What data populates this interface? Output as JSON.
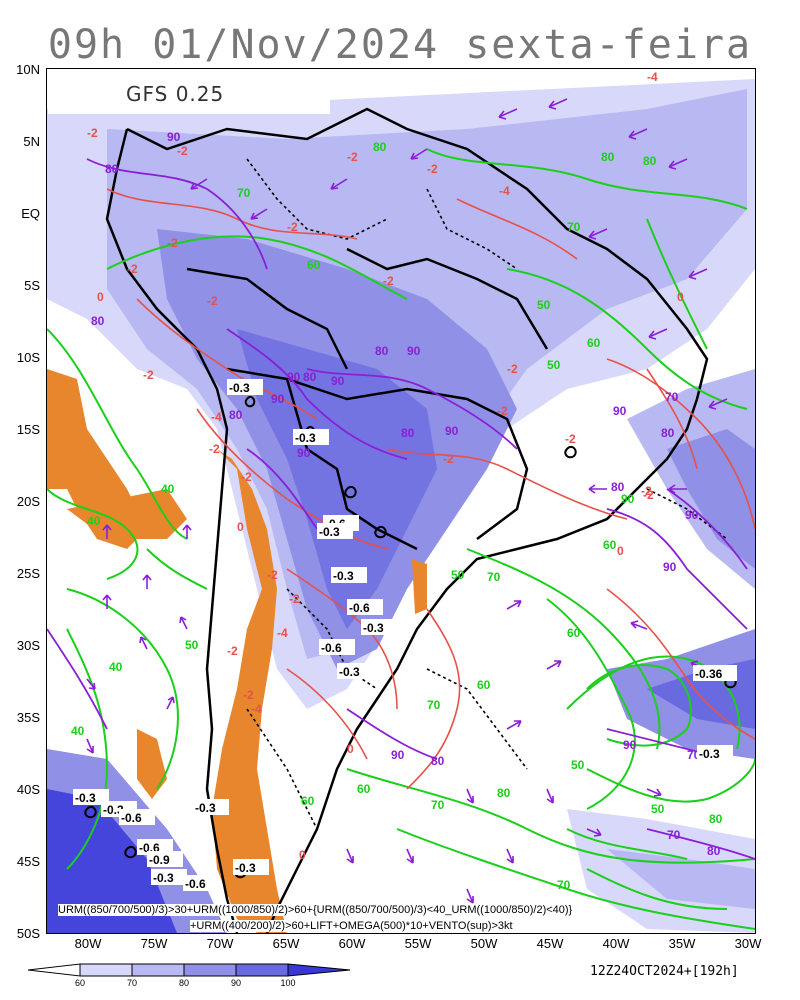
{
  "title": "09h 01/Nov/2024 sexta-feira",
  "model": "GFS 0.25",
  "lat_labels": [
    "10N",
    "5N",
    "EQ",
    "5S",
    "10S",
    "15S",
    "20S",
    "25S",
    "30S",
    "35S",
    "40S",
    "45S",
    "50S"
  ],
  "lon_labels": [
    "80W",
    "75W",
    "70W",
    "65W",
    "60W",
    "55W",
    "50W",
    "45W",
    "40W",
    "35W",
    "30W"
  ],
  "caption_line1": "URM((850/700/500)/3)>30+URM((1000/850)/2)>60+{URM((850/700/500)/3)<40_URM((1000/850)/2)<40)}",
  "caption_line2": "+URM((400/200)/2)>60+LIFT+OMEGA(500)*10+VENTO(sup)>3kt",
  "colorbar_ticks": [
    "60",
    "70",
    "80",
    "90",
    "100"
  ],
  "run_info": "12Z24OCT2024+[192h]",
  "colors": {
    "lift_fill": "#e8862e",
    "humidity_60": "#d8d8fa",
    "humidity_70": "#b8b8f2",
    "humidity_80": "#9090e6",
    "humidity_90": "#6a6ae0",
    "humidity_100": "#3838d8",
    "contour_green": "#1bcf1b",
    "contour_red": "#e8504a",
    "contour_purple": "#8a1fd6",
    "wind_arrow": "#8a1fd6"
  },
  "contour_labels": {
    "green": [
      "80",
      "70",
      "60",
      "50",
      "40",
      "40",
      "80",
      "70",
      "60",
      "50",
      "60",
      "70",
      "80",
      "90",
      "60",
      "50",
      "60",
      "70",
      "40",
      "50",
      "80",
      "60",
      "70",
      "50",
      "40",
      "50",
      "60",
      "70",
      "80"
    ],
    "red": [
      "-2",
      "-2",
      "-2",
      "-4",
      "-2",
      "-2",
      "-2",
      "-2",
      "-2",
      "-4",
      "-2",
      "0",
      "0",
      "-2",
      "-4",
      "-2",
      "-2",
      "-2",
      "-2",
      "-2",
      "-2",
      "0",
      "0",
      "-2",
      "-2",
      "-2",
      "-4",
      "-2",
      "-2",
      "0",
      "0",
      "-2",
      "-4"
    ],
    "purple": [
      "90",
      "80",
      "80",
      "90",
      "90",
      "80",
      "90",
      "80",
      "90",
      "80",
      "90",
      "90",
      "80",
      "90",
      "80",
      "90",
      "70",
      "70",
      "80",
      "90",
      "90",
      "80",
      "80",
      "90",
      "70"
    ],
    "omega": [
      "-0.3",
      "-0.3",
      "-0.6",
      "-0.3",
      "-0.3",
      "-0.6",
      "-0.3",
      "-0.3",
      "-0.36",
      "-0.3",
      "-0.3",
      "-0.3",
      "-0.6",
      "-0.6",
      "-0.9",
      "-0.3",
      "-0.3",
      "-0.6",
      "-0.3",
      "-0.6"
    ]
  }
}
